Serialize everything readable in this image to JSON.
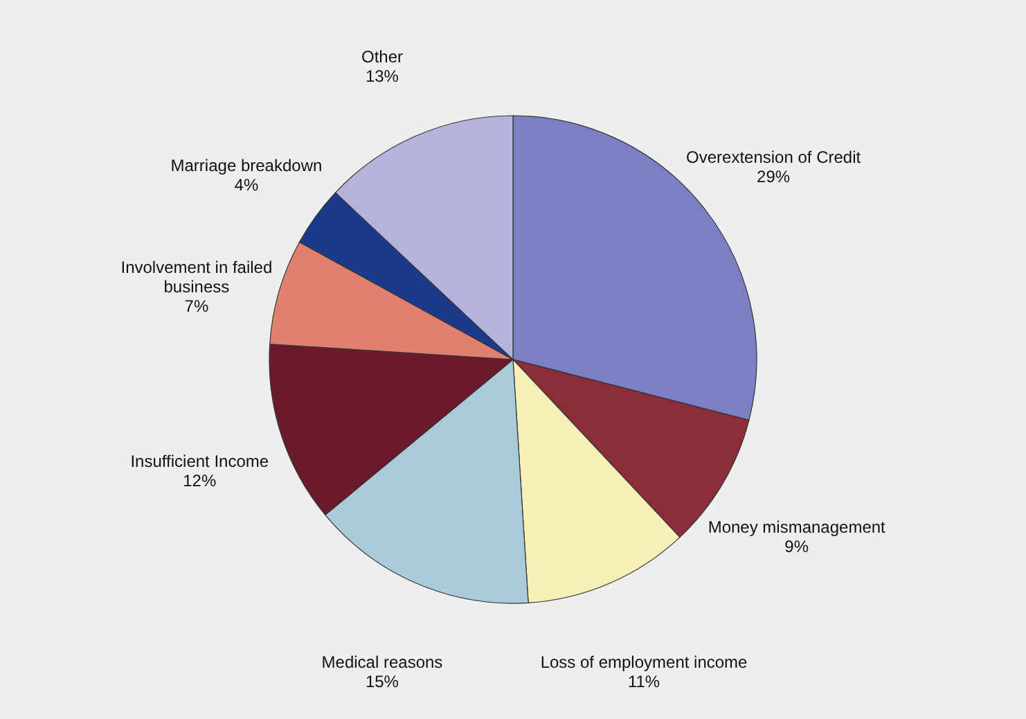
{
  "chart_data": {
    "type": "pie",
    "categories": [
      "Overextension of Credit",
      "Money mismanagement",
      "Loss of employment income",
      "Medical reasons",
      "Insufficient Income",
      "Involvement in failed business",
      "Marriage breakdown",
      "Other"
    ],
    "values": [
      29,
      9,
      11,
      15,
      12,
      7,
      4,
      13
    ],
    "value_labels": [
      "29%",
      "9%",
      "11%",
      "15%",
      "12%",
      "7%",
      "4%",
      "13%"
    ],
    "colors": [
      "#7b80c4",
      "#8b2e3a",
      "#f5f0b8",
      "#a9cbd8",
      "#6b1a2e",
      "#e0806e",
      "#1c3a8c",
      "#b3b3dc"
    ]
  }
}
